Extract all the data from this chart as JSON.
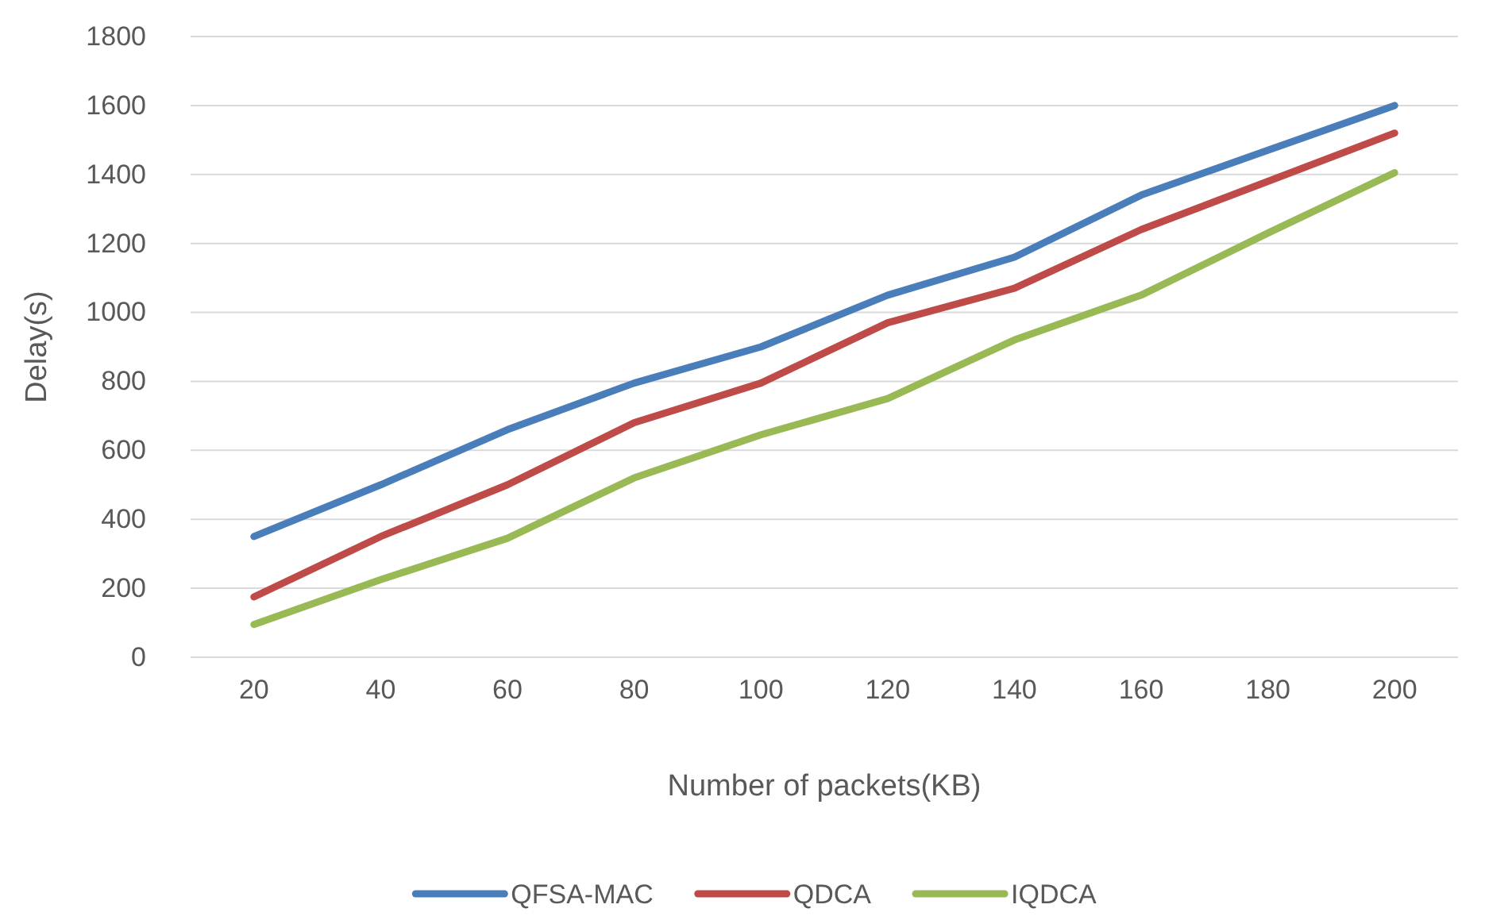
{
  "chart_data": {
    "type": "line",
    "xlabel": "Number of packets(KB)",
    "ylabel": "Delay(s)",
    "categories": [
      "20",
      "40",
      "60",
      "80",
      "100",
      "120",
      "140",
      "160",
      "180",
      "200"
    ],
    "series": [
      {
        "name": "QFSA-MAC",
        "color": "#4a7ebb",
        "values": [
          350,
          500,
          660,
          795,
          900,
          1050,
          1160,
          1340,
          1470,
          1600
        ]
      },
      {
        "name": "QDCA",
        "color": "#be4b48",
        "values": [
          175,
          350,
          500,
          680,
          795,
          970,
          1070,
          1240,
          1380,
          1520
        ]
      },
      {
        "name": "IQDCA",
        "color": "#98b954",
        "values": [
          95,
          225,
          345,
          520,
          645,
          750,
          920,
          1050,
          1230,
          1405
        ]
      }
    ],
    "ylim": [
      0,
      1800
    ],
    "yticks": [
      0,
      200,
      400,
      600,
      800,
      1000,
      1200,
      1400,
      1600,
      1800
    ],
    "grid": "y",
    "legend": "bottom",
    "marker": "none",
    "line_style": "solid"
  }
}
